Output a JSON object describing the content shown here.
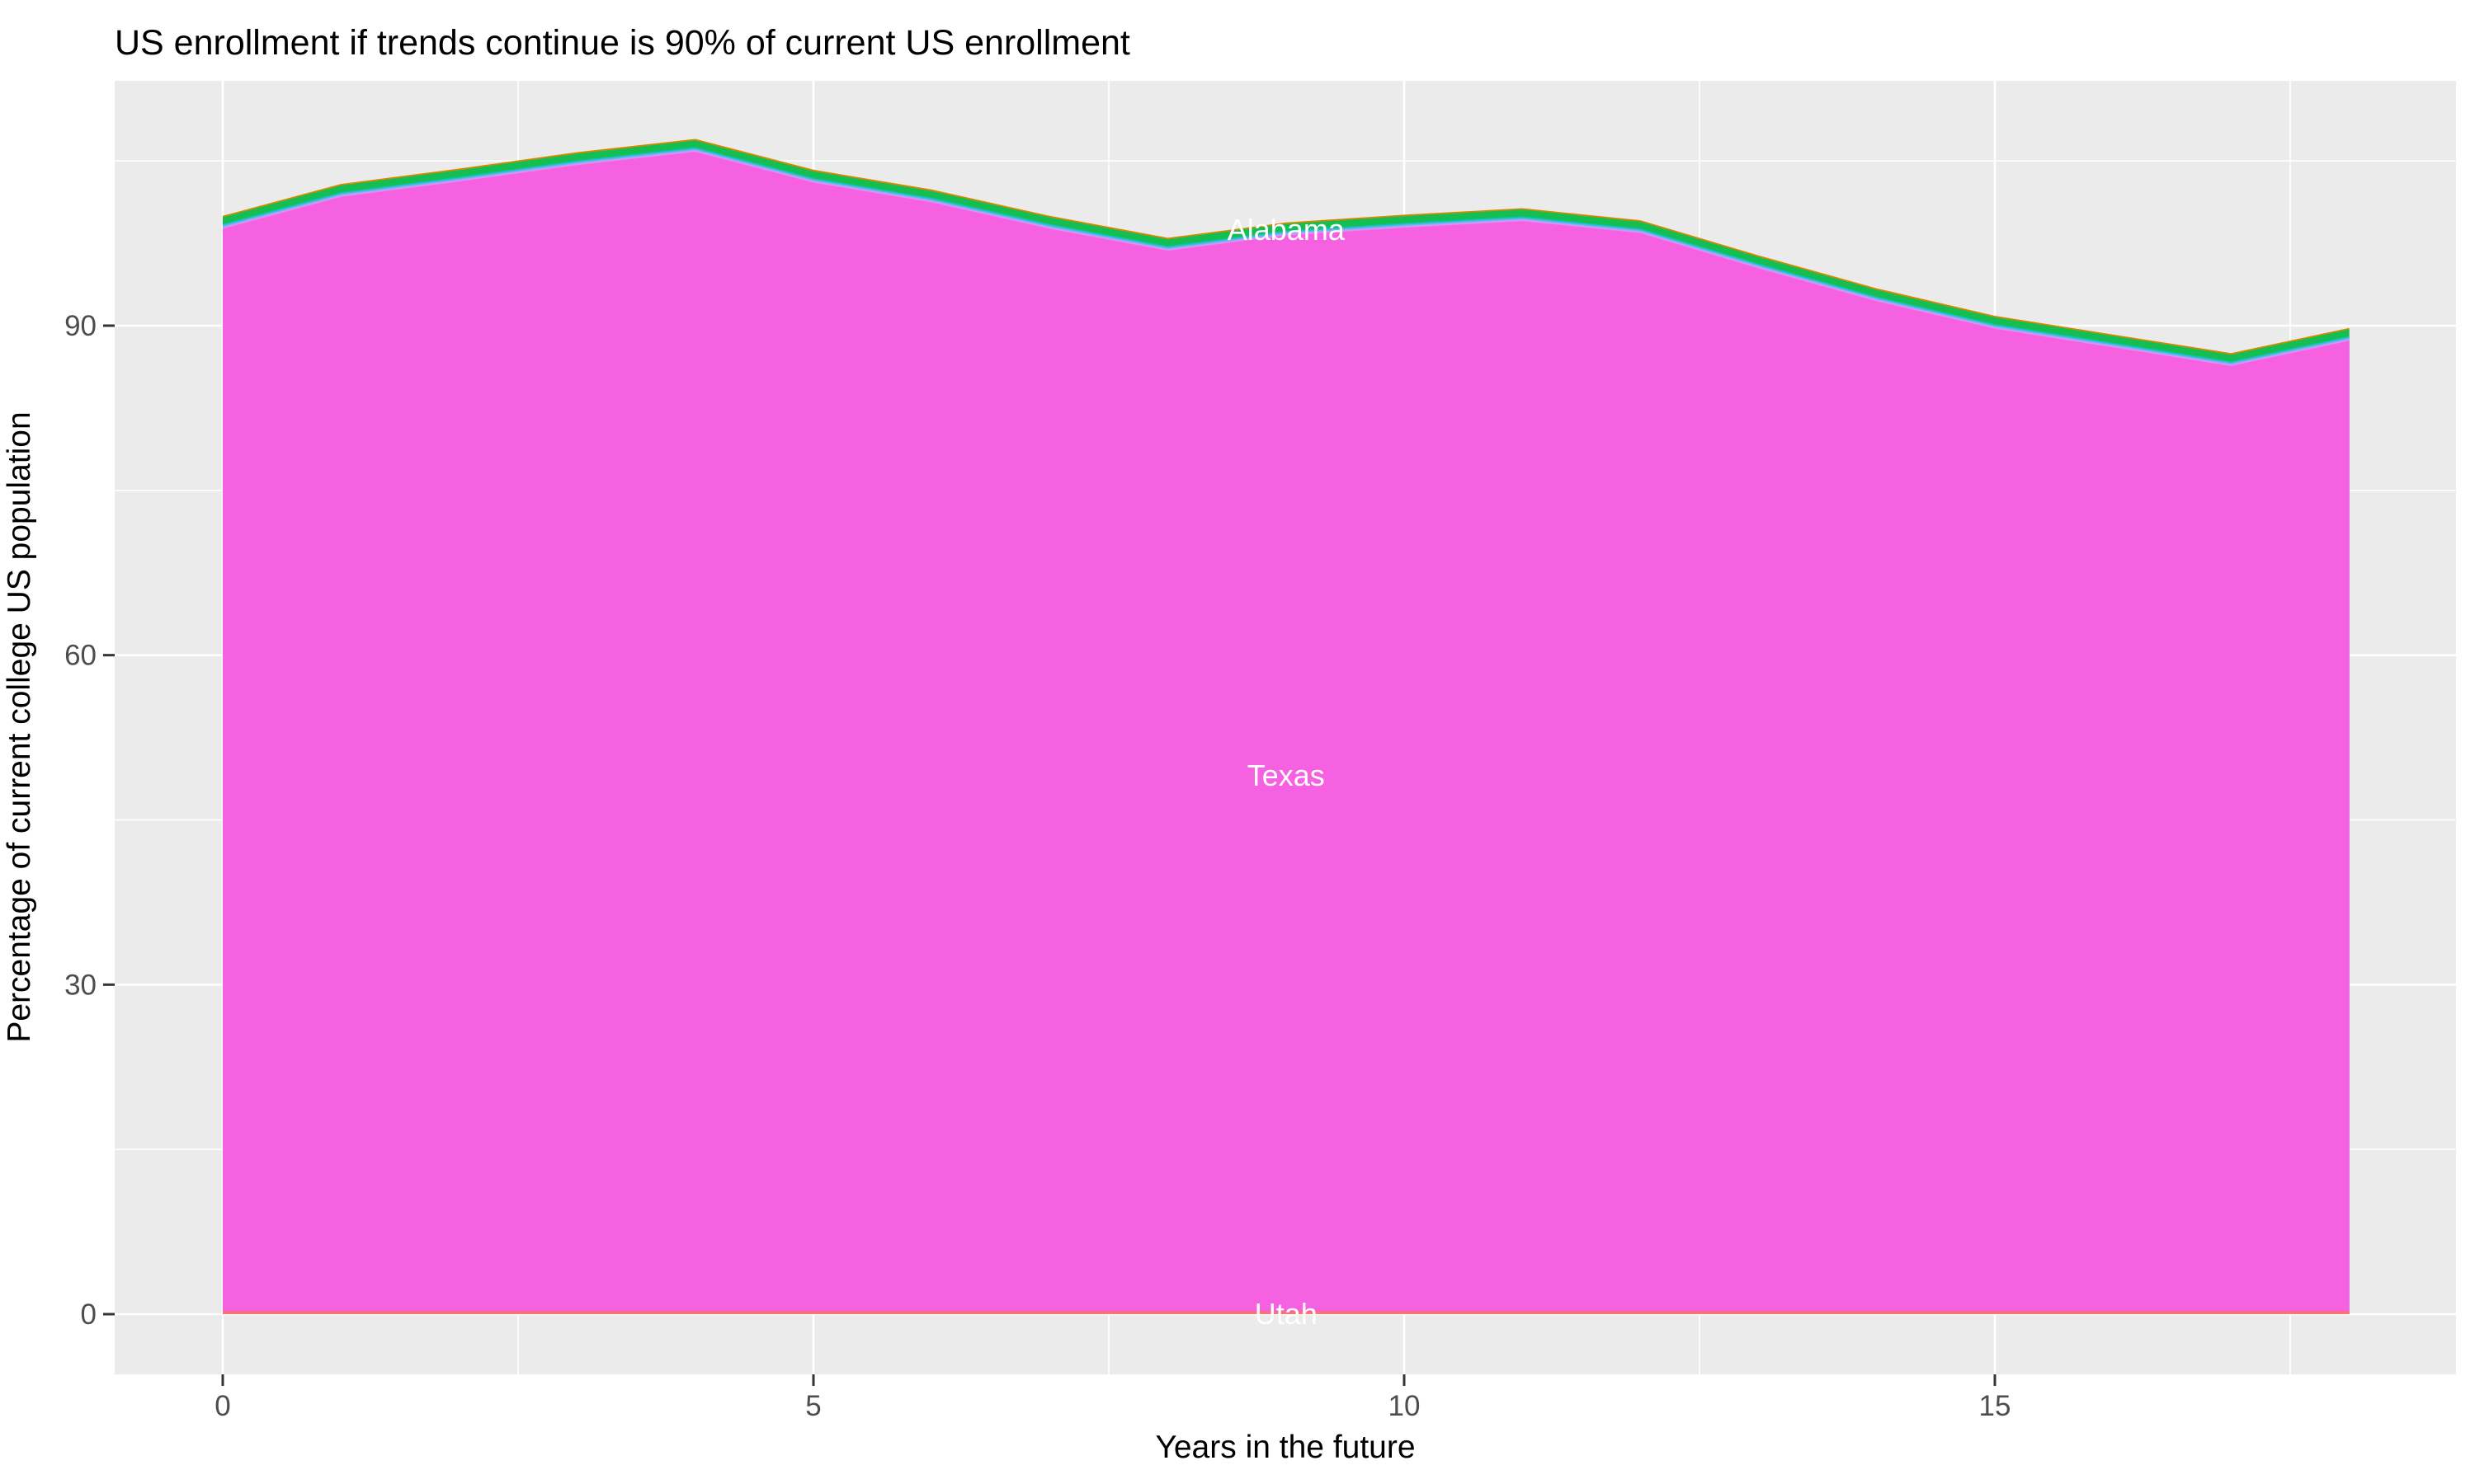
{
  "page": {
    "background": "#ffffff",
    "panel_background": "#EBEBEB",
    "gridline_color": "#FFFFFF",
    "tick_color": "#333333",
    "tick_label_color": "#4D4D4D",
    "title_color": "#000000",
    "area_label_color": "#FFFFFF"
  },
  "chart_data": {
    "type": "area",
    "stacked": true,
    "title": "US enrollment if trends continue is 90% of current US enrollment",
    "xlabel": "Years in the future",
    "ylabel": "Percentage of current college US population",
    "legend": "none",
    "grid": "on",
    "xlim": [
      0,
      18
    ],
    "ylim": [
      0,
      107
    ],
    "x_ticks": [
      0,
      5,
      10,
      15
    ],
    "y_ticks": [
      0,
      30,
      60,
      90
    ],
    "x_minor_ticks": [
      2.5,
      7.5,
      12.5,
      17.5
    ],
    "y_minor_ticks": [
      15,
      45,
      75,
      105
    ],
    "x": [
      0,
      1,
      2,
      3,
      4,
      5,
      6,
      7,
      8,
      9,
      10,
      11,
      12,
      13,
      14,
      15,
      16,
      17,
      18
    ],
    "total_top_edge": [
      100.0,
      102.9,
      104.3,
      105.8,
      107.0,
      104.2,
      102.4,
      100.0,
      98.0,
      99.4,
      100.1,
      100.7,
      99.6,
      96.4,
      93.4,
      90.9,
      89.2,
      87.5,
      89.8
    ],
    "bands_top_to_bottom": [
      {
        "name": "orange-top-band",
        "color": "#D08C00",
        "thickness": 0.14
      },
      {
        "name": "green-band",
        "color": "#13BE53",
        "thickness": 0.6
      },
      {
        "name": "teal-green-stripe",
        "color": "#18BFA6",
        "thickness": 0.09
      },
      {
        "name": "cyan-stripe",
        "color": "#2CC0D2",
        "thickness": 0.08
      },
      {
        "name": "light-blue-stripe",
        "color": "#5FB6F1",
        "thickness": 0.08
      },
      {
        "name": "periwinkle-stripe",
        "color": "#9BA9FA",
        "thickness": 0.07
      },
      {
        "name": "lavender-stripe",
        "color": "#CC9AF5",
        "thickness": 0.06
      },
      {
        "name": "light-pink-stripe",
        "color": "#EE86EF",
        "thickness": 0.06
      },
      {
        "name": "magenta-main-band",
        "color": "#F661E2",
        "thickness": "fill"
      }
    ],
    "bottom_flat_bands": [
      {
        "name": "hot-pink-bottom-stripe",
        "color": "#FB62A9",
        "height": 0.34
      },
      {
        "name": "salmon-bottom-stripe",
        "color": "#F8766D",
        "height": 0.2
      }
    ],
    "area_labels": [
      {
        "text": "Alabama",
        "x": 9,
        "y": 98.7
      },
      {
        "text": "Texas",
        "x": 9,
        "y": 49.0
      },
      {
        "text": "Utah",
        "x": 9,
        "y": 0.0
      }
    ]
  }
}
